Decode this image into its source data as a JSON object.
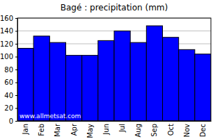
{
  "chart_data": {
    "type": "bar",
    "title": "Bagé : precipitation (mm)",
    "categories": [
      "Jan",
      "Feb",
      "Mar",
      "Apr",
      "May",
      "Jun",
      "Jul",
      "Aug",
      "Sep",
      "Oct",
      "Nov",
      "Dec"
    ],
    "values": [
      113,
      132,
      122,
      102,
      102,
      125,
      140,
      122,
      148,
      130,
      111,
      104
    ],
    "color": "#0000ff",
    "ylim": [
      0,
      160
    ],
    "yticks": [
      0,
      20,
      40,
      60,
      80,
      100,
      120,
      140,
      160
    ],
    "grid": true,
    "annotations": [
      "www.allmetsat.com"
    ]
  }
}
